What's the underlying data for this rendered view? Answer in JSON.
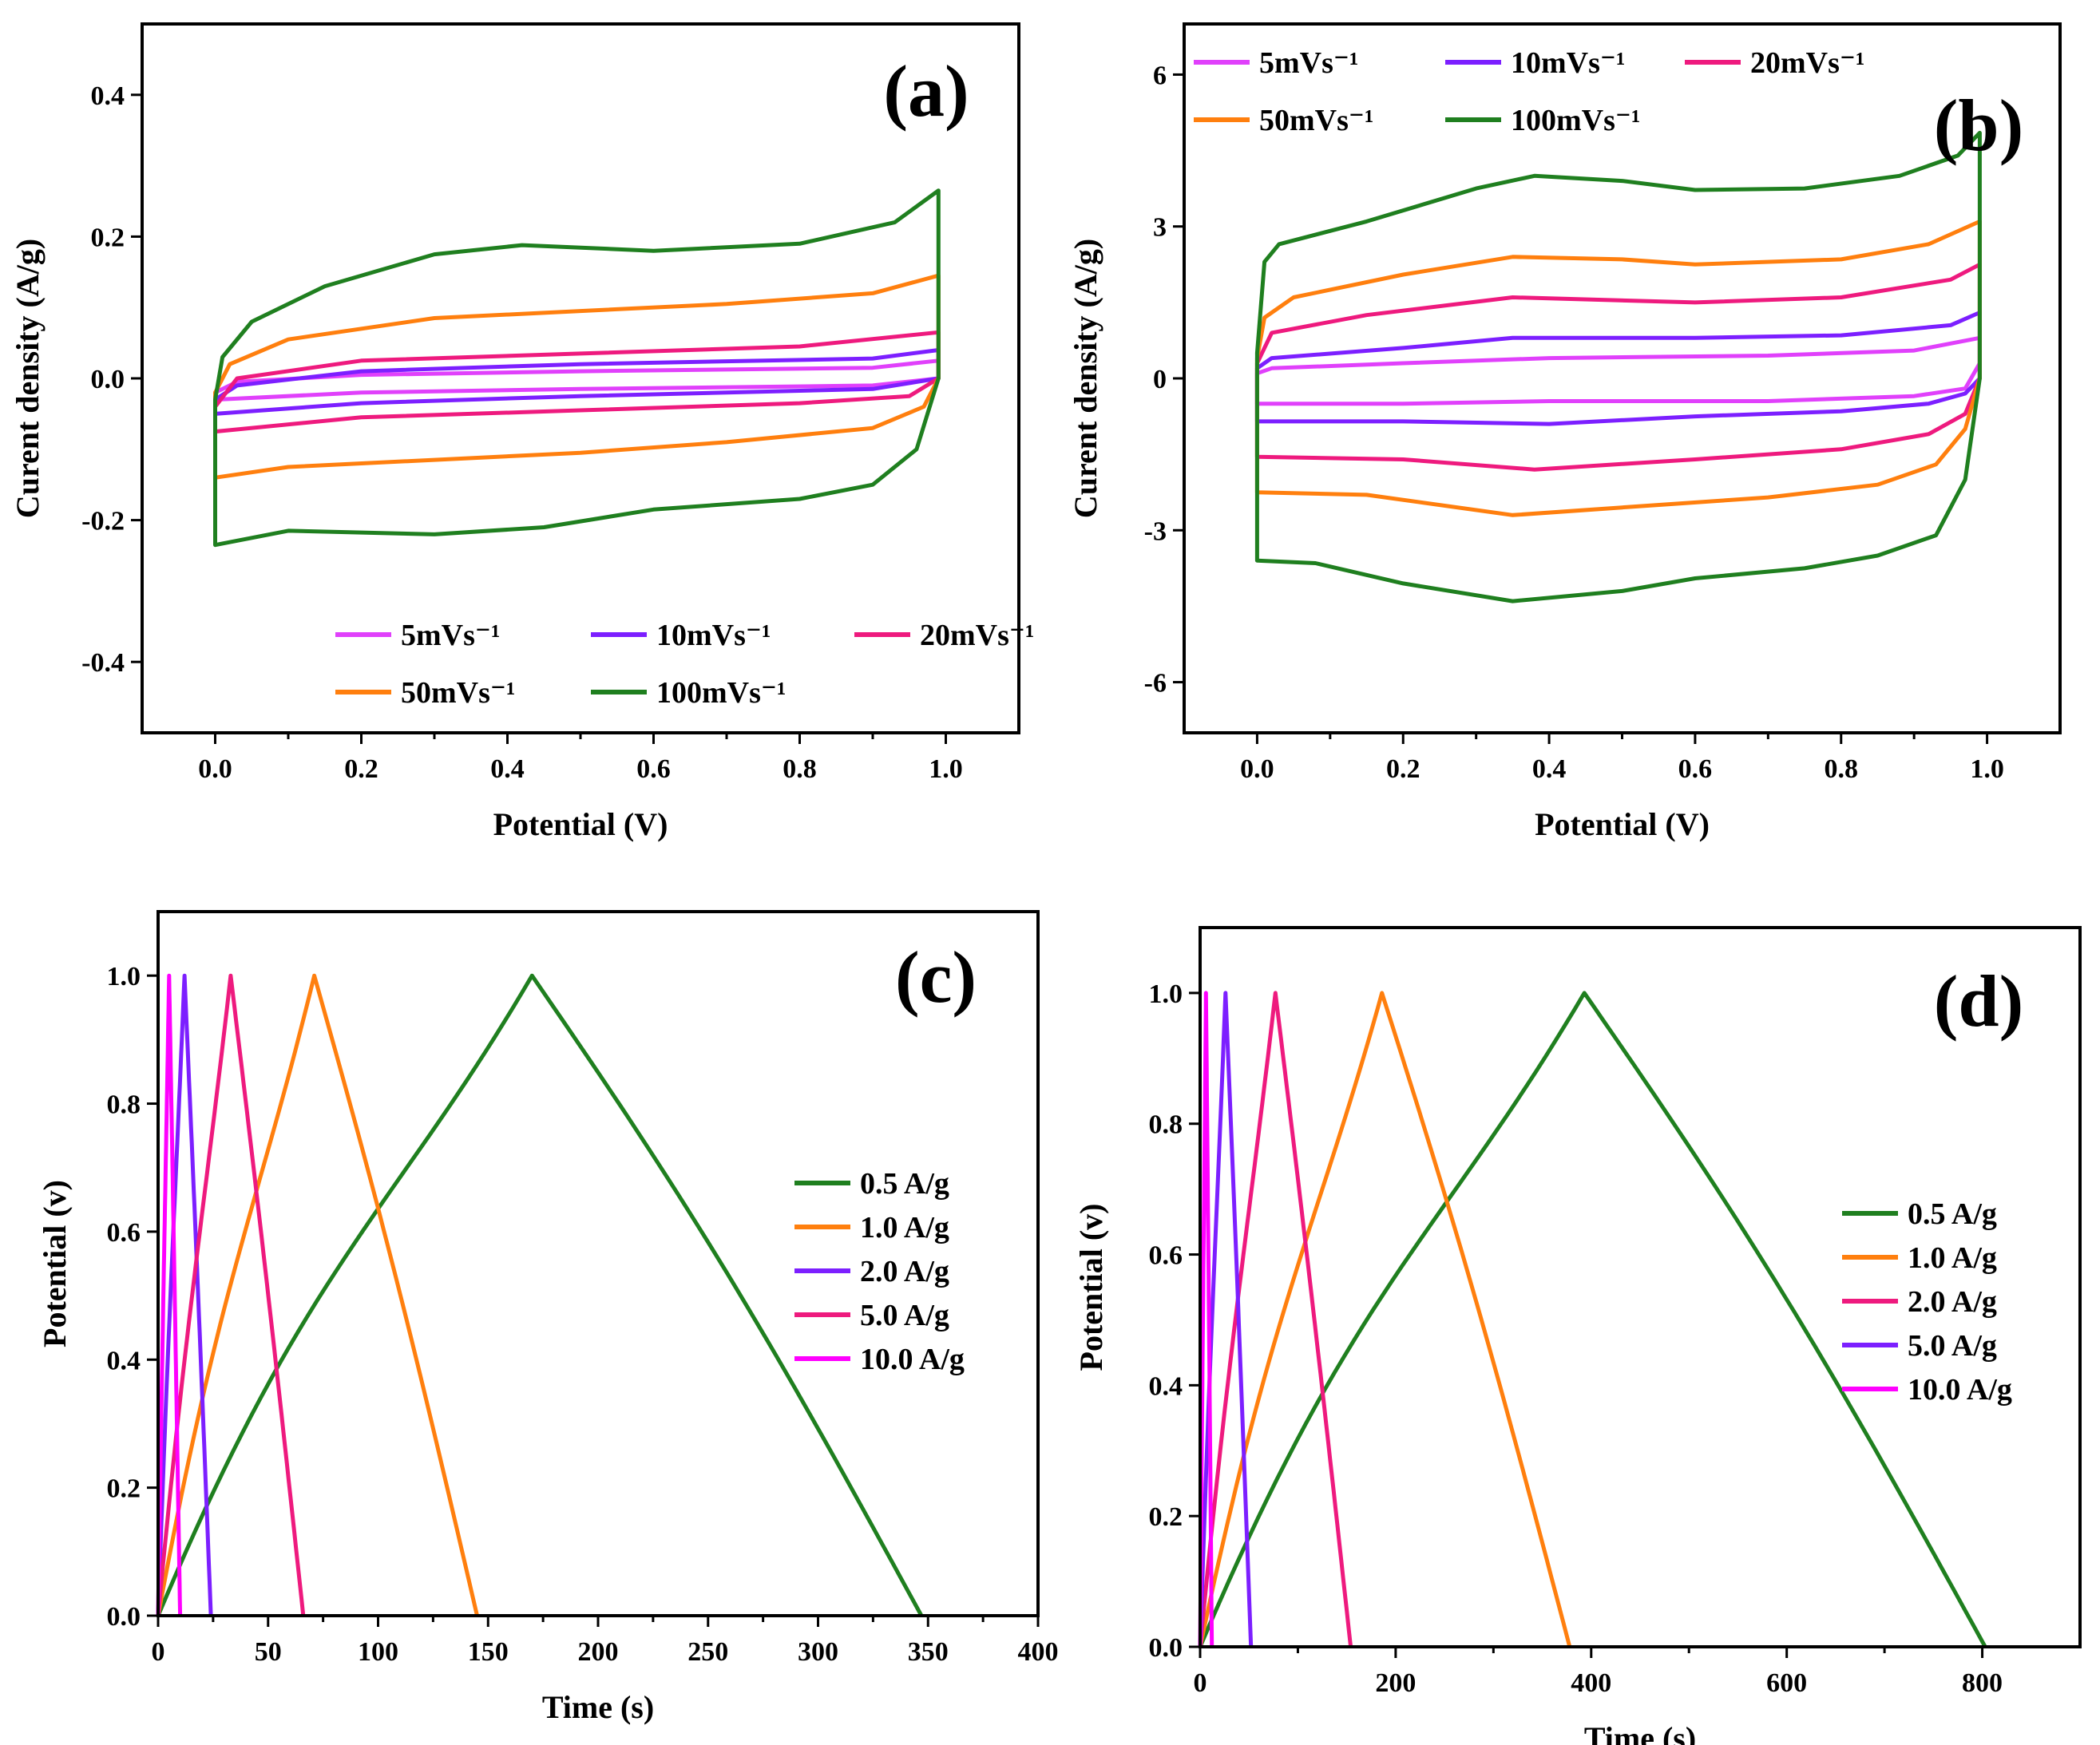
{
  "colors": {
    "5": "#e040fb",
    "10": "#7c1fff",
    "20": "#ee1a7e",
    "50": "#ff7f0e",
    "100": "#1f7f1f",
    "c0_5": "#1f7f1f",
    "c1_0": "#ff7f0e",
    "c2_0": "#7c1fff",
    "c5_0": "#ee1a7e",
    "c10_0": "#ff00ff",
    "d0_5": "#1f7f1f",
    "d1_0": "#ff7f0e",
    "d2_0": "#ee1a7e",
    "d5_0": "#7c1fff",
    "d10_0": "#ff00ff"
  },
  "chart_data": [
    {
      "id": "a",
      "panel_label": "(a)",
      "type": "line",
      "xlabel": "Potential (V)",
      "ylabel": "Curent density (A/g)",
      "xlim": [
        -0.1,
        1.1
      ],
      "ylim": [
        -0.5,
        0.5
      ],
      "xticks": [
        "0.0",
        "0.2",
        "0.4",
        "0.6",
        "0.8",
        "1.0"
      ],
      "yticks": [
        "0.4",
        "0.2",
        "0.0",
        "-0.2",
        "-0.4"
      ],
      "legend": {
        "position": "bottom-center",
        "rows": [
          [
            0,
            1,
            2
          ],
          [
            3,
            4
          ]
        ]
      },
      "series": [
        {
          "name": "5mVs⁻¹",
          "color_key": "5",
          "upper": [
            [
              0,
              -0.02
            ],
            [
              0.03,
              -0.005
            ],
            [
              0.2,
              0.005
            ],
            [
              0.5,
              0.01
            ],
            [
              0.9,
              0.015
            ],
            [
              0.99,
              0.025
            ]
          ],
          "lower": [
            [
              0,
              -0.03
            ],
            [
              0.2,
              -0.02
            ],
            [
              0.5,
              -0.015
            ],
            [
              0.9,
              -0.01
            ],
            [
              0.99,
              0.0
            ]
          ]
        },
        {
          "name": "10mVs⁻¹",
          "color_key": "10",
          "upper": [
            [
              0,
              -0.03
            ],
            [
              0.03,
              -0.01
            ],
            [
              0.2,
              0.01
            ],
            [
              0.5,
              0.02
            ],
            [
              0.9,
              0.028
            ],
            [
              0.99,
              0.04
            ]
          ],
          "lower": [
            [
              0,
              -0.05
            ],
            [
              0.2,
              -0.035
            ],
            [
              0.5,
              -0.025
            ],
            [
              0.9,
              -0.015
            ],
            [
              0.99,
              0.0
            ]
          ]
        },
        {
          "name": "20mVs⁻¹",
          "color_key": "20",
          "upper": [
            [
              0,
              -0.04
            ],
            [
              0.03,
              0.0
            ],
            [
              0.2,
              0.025
            ],
            [
              0.5,
              0.035
            ],
            [
              0.8,
              0.045
            ],
            [
              0.99,
              0.065
            ]
          ],
          "lower": [
            [
              0,
              -0.075
            ],
            [
              0.2,
              -0.055
            ],
            [
              0.5,
              -0.045
            ],
            [
              0.8,
              -0.035
            ],
            [
              0.95,
              -0.025
            ],
            [
              0.99,
              0.0
            ]
          ]
        },
        {
          "name": "50mVs⁻¹",
          "color_key": "50",
          "upper": [
            [
              0,
              -0.02
            ],
            [
              0.02,
              0.02
            ],
            [
              0.1,
              0.055
            ],
            [
              0.3,
              0.085
            ],
            [
              0.5,
              0.095
            ],
            [
              0.7,
              0.105
            ],
            [
              0.9,
              0.12
            ],
            [
              0.99,
              0.145
            ]
          ],
          "lower": [
            [
              0,
              -0.14
            ],
            [
              0.1,
              -0.125
            ],
            [
              0.3,
              -0.115
            ],
            [
              0.5,
              -0.105
            ],
            [
              0.7,
              -0.09
            ],
            [
              0.9,
              -0.07
            ],
            [
              0.97,
              -0.04
            ],
            [
              0.99,
              0.0
            ]
          ]
        },
        {
          "name": "100mVs⁻¹",
          "color_key": "100",
          "upper": [
            [
              0,
              -0.03
            ],
            [
              0.01,
              0.03
            ],
            [
              0.05,
              0.08
            ],
            [
              0.15,
              0.13
            ],
            [
              0.3,
              0.175
            ],
            [
              0.42,
              0.188
            ],
            [
              0.6,
              0.18
            ],
            [
              0.8,
              0.19
            ],
            [
              0.93,
              0.22
            ],
            [
              0.99,
              0.265
            ]
          ],
          "lower": [
            [
              0,
              -0.235
            ],
            [
              0.1,
              -0.215
            ],
            [
              0.3,
              -0.22
            ],
            [
              0.45,
              -0.21
            ],
            [
              0.6,
              -0.185
            ],
            [
              0.8,
              -0.17
            ],
            [
              0.9,
              -0.15
            ],
            [
              0.96,
              -0.1
            ],
            [
              0.99,
              0.0
            ]
          ]
        }
      ]
    },
    {
      "id": "b",
      "panel_label": "(b)",
      "type": "line",
      "xlabel": "Potential (V)",
      "ylabel": "Curent density (A/g)",
      "xlim": [
        -0.1,
        1.1
      ],
      "ylim": [
        -7,
        7
      ],
      "xticks": [
        "0.0",
        "0.2",
        "0.4",
        "0.6",
        "0.8",
        "1.0"
      ],
      "yticks": [
        "6",
        "3",
        "0",
        "-3",
        "-6"
      ],
      "legend": {
        "position": "top-left",
        "rows": [
          [
            0,
            1,
            2
          ],
          [
            3,
            4
          ]
        ]
      },
      "series": [
        {
          "name": "5mVs⁻¹",
          "color_key": "5",
          "upper": [
            [
              0,
              0.1
            ],
            [
              0.02,
              0.2
            ],
            [
              0.2,
              0.3
            ],
            [
              0.4,
              0.4
            ],
            [
              0.7,
              0.45
            ],
            [
              0.9,
              0.55
            ],
            [
              0.99,
              0.8
            ]
          ],
          "lower": [
            [
              0,
              -0.5
            ],
            [
              0.2,
              -0.5
            ],
            [
              0.4,
              -0.45
            ],
            [
              0.7,
              -0.45
            ],
            [
              0.9,
              -0.35
            ],
            [
              0.97,
              -0.2
            ],
            [
              0.99,
              0.3
            ]
          ]
        },
        {
          "name": "10mVs⁻¹",
          "color_key": "10",
          "upper": [
            [
              0,
              0.2
            ],
            [
              0.02,
              0.4
            ],
            [
              0.2,
              0.6
            ],
            [
              0.35,
              0.8
            ],
            [
              0.6,
              0.8
            ],
            [
              0.8,
              0.85
            ],
            [
              0.95,
              1.05
            ],
            [
              0.99,
              1.3
            ]
          ],
          "lower": [
            [
              0,
              -0.85
            ],
            [
              0.2,
              -0.85
            ],
            [
              0.4,
              -0.9
            ],
            [
              0.6,
              -0.75
            ],
            [
              0.8,
              -0.65
            ],
            [
              0.92,
              -0.5
            ],
            [
              0.97,
              -0.3
            ],
            [
              0.99,
              0.0
            ]
          ]
        },
        {
          "name": "20mVs⁻¹",
          "color_key": "20",
          "upper": [
            [
              0,
              0.3
            ],
            [
              0.02,
              0.9
            ],
            [
              0.15,
              1.25
            ],
            [
              0.35,
              1.6
            ],
            [
              0.6,
              1.5
            ],
            [
              0.8,
              1.6
            ],
            [
              0.95,
              1.95
            ],
            [
              0.99,
              2.25
            ]
          ],
          "lower": [
            [
              0,
              -1.55
            ],
            [
              0.2,
              -1.6
            ],
            [
              0.38,
              -1.8
            ],
            [
              0.6,
              -1.6
            ],
            [
              0.8,
              -1.4
            ],
            [
              0.92,
              -1.1
            ],
            [
              0.97,
              -0.7
            ],
            [
              0.99,
              0.0
            ]
          ]
        },
        {
          "name": "50mVs⁻¹",
          "color_key": "50",
          "upper": [
            [
              0,
              0.4
            ],
            [
              0.01,
              1.2
            ],
            [
              0.05,
              1.6
            ],
            [
              0.2,
              2.05
            ],
            [
              0.35,
              2.4
            ],
            [
              0.5,
              2.35
            ],
            [
              0.6,
              2.25
            ],
            [
              0.8,
              2.35
            ],
            [
              0.92,
              2.65
            ],
            [
              0.99,
              3.1
            ]
          ],
          "lower": [
            [
              0,
              -2.25
            ],
            [
              0.15,
              -2.3
            ],
            [
              0.35,
              -2.7
            ],
            [
              0.5,
              -2.55
            ],
            [
              0.7,
              -2.35
            ],
            [
              0.85,
              -2.1
            ],
            [
              0.93,
              -1.7
            ],
            [
              0.97,
              -1.0
            ],
            [
              0.99,
              0.0
            ]
          ]
        },
        {
          "name": "100mVs⁻¹",
          "color_key": "100",
          "upper": [
            [
              0,
              0.5
            ],
            [
              0.01,
              2.3
            ],
            [
              0.03,
              2.65
            ],
            [
              0.15,
              3.1
            ],
            [
              0.3,
              3.75
            ],
            [
              0.38,
              4.0
            ],
            [
              0.5,
              3.9
            ],
            [
              0.6,
              3.72
            ],
            [
              0.75,
              3.75
            ],
            [
              0.88,
              4.0
            ],
            [
              0.96,
              4.4
            ],
            [
              0.99,
              4.85
            ]
          ],
          "lower": [
            [
              0,
              -3.6
            ],
            [
              0.08,
              -3.65
            ],
            [
              0.2,
              -4.05
            ],
            [
              0.35,
              -4.4
            ],
            [
              0.5,
              -4.2
            ],
            [
              0.6,
              -3.95
            ],
            [
              0.75,
              -3.75
            ],
            [
              0.85,
              -3.5
            ],
            [
              0.93,
              -3.1
            ],
            [
              0.97,
              -2.0
            ],
            [
              0.99,
              0.0
            ]
          ]
        }
      ]
    },
    {
      "id": "c",
      "panel_label": "(c)",
      "type": "line",
      "xlabel": "Time (s)",
      "ylabel": "Potential (v)",
      "xlim": [
        0,
        400
      ],
      "ylim": [
        0,
        1.1
      ],
      "xticks": [
        "0",
        "50",
        "100",
        "150",
        "200",
        "250",
        "300",
        "350",
        "400"
      ],
      "yticks": [
        "1.0",
        "0.8",
        "0.6",
        "0.4",
        "0.2",
        "0.0"
      ],
      "legend": {
        "position": "right",
        "rows": [
          [
            0
          ],
          [
            1
          ],
          [
            2
          ],
          [
            3
          ],
          [
            4
          ]
        ]
      },
      "series": [
        {
          "name": "0.5 A/g",
          "color_key": "c0_5",
          "peak": 170,
          "end": 347,
          "bow": 0.12
        },
        {
          "name": "1.0 A/g",
          "color_key": "c1_0",
          "peak": 71,
          "end": 145,
          "bow": 0.1
        },
        {
          "name": "2.0 A/g",
          "color_key": "c2_0",
          "peak": 12,
          "end": 24,
          "bow": 0.06
        },
        {
          "name": "5.0 A/g",
          "color_key": "c5_0",
          "peak": 33,
          "end": 66,
          "bow": 0.06
        },
        {
          "name": "10.0 A/g",
          "color_key": "c10_0",
          "peak": 5,
          "end": 10,
          "bow": 0.04
        }
      ]
    },
    {
      "id": "d",
      "panel_label": "(d)",
      "type": "line",
      "xlabel": "Time (s)",
      "ylabel": "Potential (v)",
      "xlim": [
        0,
        900
      ],
      "ylim": [
        0,
        1.1
      ],
      "xticks": [
        "0",
        "200",
        "400",
        "600",
        "800"
      ],
      "yticks": [
        "1.0",
        "0.8",
        "0.6",
        "0.4",
        "0.2",
        "0.0"
      ],
      "legend": {
        "position": "right",
        "rows": [
          [
            0
          ],
          [
            1
          ],
          [
            2
          ],
          [
            3
          ],
          [
            4
          ]
        ]
      },
      "series": [
        {
          "name": "0.5 A/g",
          "color_key": "d0_5",
          "peak": 393,
          "end": 803,
          "bow": 0.12
        },
        {
          "name": "1.0 A/g",
          "color_key": "d1_0",
          "peak": 186,
          "end": 378,
          "bow": 0.1
        },
        {
          "name": "2.0 A/g",
          "color_key": "d2_0",
          "peak": 77,
          "end": 154,
          "bow": 0.06
        },
        {
          "name": "5.0 A/g",
          "color_key": "d5_0",
          "peak": 26,
          "end": 52,
          "bow": 0.06
        },
        {
          "name": "10.0 A/g",
          "color_key": "d10_0",
          "peak": 6,
          "end": 12,
          "bow": 0.04
        }
      ]
    }
  ]
}
